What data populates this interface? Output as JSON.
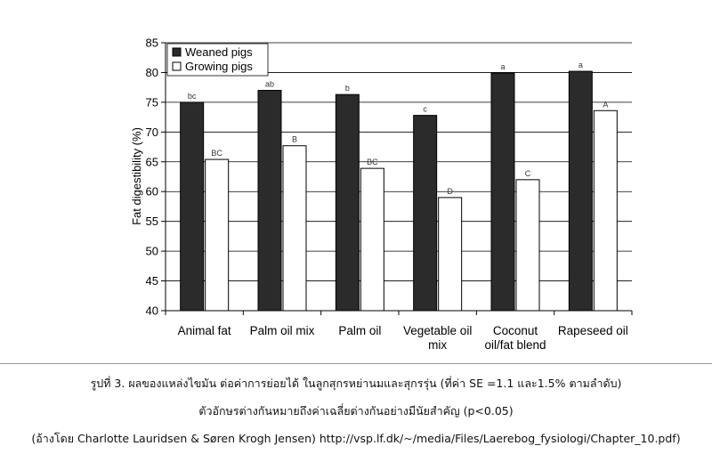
{
  "chart_data": {
    "type": "bar",
    "ylabel": "Fat digestibility (%)",
    "xlabel": "",
    "ylim": [
      40,
      85
    ],
    "yticks": [
      40,
      45,
      50,
      55,
      60,
      65,
      70,
      75,
      80,
      85
    ],
    "grid": true,
    "legend_position": "top-left",
    "categories": [
      [
        "Animal fat"
      ],
      [
        "Palm oil mix"
      ],
      [
        "Palm oil"
      ],
      [
        "Vegetable oil",
        "mix"
      ],
      [
        "Coconut",
        "oil/fat blend"
      ],
      [
        "Rapeseed oil"
      ]
    ],
    "series": [
      {
        "name": "Weaned pigs",
        "color": "#2b2b2b",
        "values": [
          75.0,
          77.0,
          76.3,
          72.8,
          79.9,
          80.2
        ],
        "labels": [
          "bc",
          "ab",
          "b",
          "c",
          "a",
          "a"
        ]
      },
      {
        "name": "Growing pigs",
        "color": "#ffffff",
        "values": [
          65.4,
          67.7,
          63.9,
          59.0,
          62.0,
          73.6
        ],
        "labels": [
          "BC",
          "B",
          "BC",
          "D",
          "C",
          "A"
        ]
      }
    ]
  },
  "caption": {
    "line1": "รูปที่ 3. ผลของแหล่งไขมัน ต่อค่าการย่อยได้ ในลูกสุกรหย่านมและสุกรรุ่น (ที่ค่า SE =1.1 และ1.5% ตามลำดับ)",
    "line2": "ตัวอักษรต่างกันหมายถึงค่าเฉลี่ยต่างกันอย่างมีนัยสำคัญ (p<0.05)",
    "line3": "(อ้างโดย Charlotte Lauridsen & Søren Krogh Jensen) http://vsp.lf.dk/~/media/Files/Laerebog_fysiologi/Chapter_10.pdf)"
  }
}
